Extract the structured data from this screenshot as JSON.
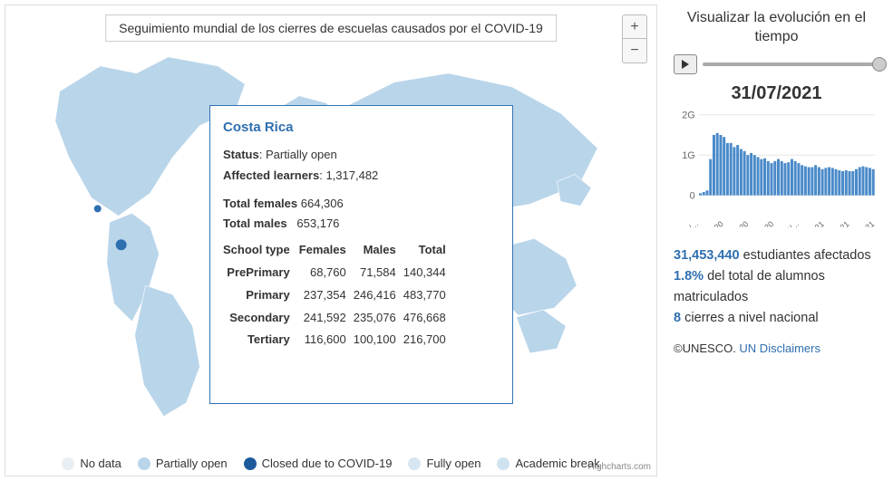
{
  "map": {
    "title": "Seguimiento mundial de los cierres de escuelas causados por el COVID-19",
    "zoom_in": "+",
    "zoom_out": "−",
    "attribution": "Highcharts.com",
    "land_color": "#b9d5ea",
    "ocean_color": "#ffffff",
    "highlight_color": "#2f6fb0",
    "border_color": "#dddddd"
  },
  "tooltip": {
    "country": "Costa Rica",
    "status_label": "Status",
    "status_value": "Partially open",
    "learners_label": "Affected learners",
    "learners_value": "1,317,482",
    "tf_label": "Total females",
    "tf_value": "664,306",
    "tm_label": "Total males",
    "tm_value": "653,176",
    "th_type": "School type",
    "th_f": "Females",
    "th_m": "Males",
    "th_t": "Total",
    "rows": [
      {
        "type": "PrePrimary",
        "f": "68,760",
        "m": "71,584",
        "t": "140,344"
      },
      {
        "type": "Primary",
        "f": "237,354",
        "m": "246,416",
        "t": "483,770"
      },
      {
        "type": "Secondary",
        "f": "241,592",
        "m": "235,076",
        "t": "476,668"
      },
      {
        "type": "Tertiary",
        "f": "116,600",
        "m": "100,100",
        "t": "216,700"
      }
    ]
  },
  "legend": {
    "items": [
      {
        "label": "No data",
        "color": "#e8eef3"
      },
      {
        "label": "Partially open",
        "color": "#b9d5ea"
      },
      {
        "label": "Closed due to COVID-19",
        "color": "#1d5a9b"
      },
      {
        "label": "Fully open",
        "color": "#d6e6f2"
      },
      {
        "label": "Academic break",
        "color": "#cfe2f0"
      }
    ]
  },
  "side": {
    "title": "Visualizar la evolución en el tiempo",
    "date": "31/07/2021"
  },
  "chart": {
    "type": "bar",
    "ylim": [
      0,
      2
    ],
    "yticks": [
      {
        "v": 0,
        "l": "0"
      },
      {
        "v": 1,
        "l": "1G"
      },
      {
        "v": 2,
        "l": "2G"
      }
    ],
    "xlabels": [
      "17/02/...",
      "18/05/2020",
      "17/08/2020",
      "16/11/2020",
      "15/...",
      "17/05/2021",
      "07/07/2021",
      "20/07/2021"
    ],
    "bar_color": "#4a8ac9",
    "grid_color": "#e5e5e5",
    "values": [
      0.05,
      0.08,
      0.12,
      0.9,
      1.5,
      1.55,
      1.5,
      1.45,
      1.3,
      1.3,
      1.2,
      1.25,
      1.15,
      1.1,
      1.0,
      1.05,
      1.0,
      0.95,
      0.9,
      0.92,
      0.85,
      0.8,
      0.85,
      0.9,
      0.85,
      0.8,
      0.82,
      0.9,
      0.85,
      0.8,
      0.75,
      0.72,
      0.7,
      0.7,
      0.75,
      0.7,
      0.65,
      0.68,
      0.7,
      0.68,
      0.65,
      0.62,
      0.6,
      0.62,
      0.6,
      0.6,
      0.65,
      0.7,
      0.72,
      0.7,
      0.68,
      0.65
    ]
  },
  "stats": {
    "s1_hl": "31,453,440",
    "s1_rest": " estudiantes afectados",
    "s2_hl": "1.8%",
    "s2_rest": " del total de alumnos matriculados",
    "s3_hl": "8",
    "s3_rest": " cierres a nivel nacional"
  },
  "credits": {
    "copyright": "©UNESCO. ",
    "link_text": "UN Disclaimers"
  }
}
